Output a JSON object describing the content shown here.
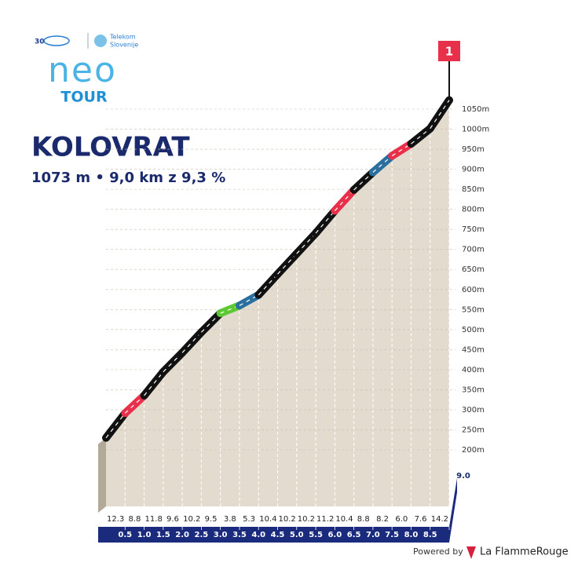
{
  "branding": {
    "anniversary": "30",
    "sponsor_line_1": "Telekom",
    "sponsor_line_2": "Slovenije",
    "logo_word": "neo",
    "logo_sub": "TOUR",
    "powered_by": "Powered by",
    "provider": "La FlammeRouge"
  },
  "chart_data": {
    "type": "climb-profile",
    "title": "KOLOVRAT",
    "subtitle": "1073 m • 9,0 km z 9,3 %",
    "category_flag": "1",
    "start_elevation": 230,
    "values": [
      12.3,
      8.8,
      11.8,
      9.6,
      10.2,
      9.5,
      3.8,
      5.3,
      10.4,
      10.2,
      10.2,
      11.2,
      10.4,
      8.8,
      8.2,
      6.0,
      7.6,
      14.2
    ],
    "value_labels": [
      "12.3",
      "8.8",
      "11.8",
      "9.6",
      "10.2",
      "9.5",
      "3.8",
      "5.3",
      "10.4",
      "10.2",
      "10.2",
      "11.2",
      "10.4",
      "8.8",
      "8.2",
      "6.0",
      "7.6",
      "14.2"
    ],
    "colors": [
      "#111111",
      "#e8304a",
      "#111111",
      "#111111",
      "#111111",
      "#111111",
      "#5cc832",
      "#2a6f9e",
      "#111111",
      "#111111",
      "#111111",
      "#111111",
      "#e8304a",
      "#111111",
      "#2a6f9e",
      "#e8304a",
      "#111111",
      "#111111"
    ],
    "xlim": [
      0,
      9
    ],
    "xticks": [
      0.5,
      {
        "value": 1,
        "label": "1.0"
      },
      1.5,
      {
        "value": 2,
        "label": "2.0"
      },
      2.5,
      {
        "value": 3,
        "label": "3.0"
      },
      3.5,
      {
        "value": 4,
        "label": "4.0"
      },
      4.5,
      {
        "value": 5,
        "label": "5.0"
      },
      5.5,
      {
        "value": 6,
        "label": "6.0"
      },
      6.5,
      {
        "value": 7,
        "label": "7.0"
      },
      7.5,
      {
        "value": 8,
        "label": "8.0"
      },
      8.5,
      {
        "value": 9,
        "label": "9.0"
      }
    ],
    "ylim": [
      200,
      1050
    ],
    "yticks": [
      {
        "value": 200,
        "label": "200m"
      },
      {
        "value": 250,
        "label": "250m"
      },
      {
        "value": 300,
        "label": "300m"
      },
      {
        "value": 350,
        "label": "350m"
      },
      {
        "value": 400,
        "label": "400m"
      },
      {
        "value": 450,
        "label": "450m"
      },
      {
        "value": 500,
        "label": "500m"
      },
      {
        "value": 550,
        "label": "550m"
      },
      {
        "value": 600,
        "label": "600m"
      },
      {
        "value": 650,
        "label": "650m"
      },
      {
        "value": 700,
        "label": "700m"
      },
      {
        "value": 750,
        "label": "750m"
      },
      {
        "value": 800,
        "label": "800m"
      },
      {
        "value": 850,
        "label": "850m"
      },
      {
        "value": 900,
        "label": "900m"
      },
      {
        "value": 950,
        "label": "950m"
      },
      {
        "value": 1000,
        "label": "1000m"
      },
      {
        "value": 1050,
        "label": "1050m"
      }
    ]
  }
}
